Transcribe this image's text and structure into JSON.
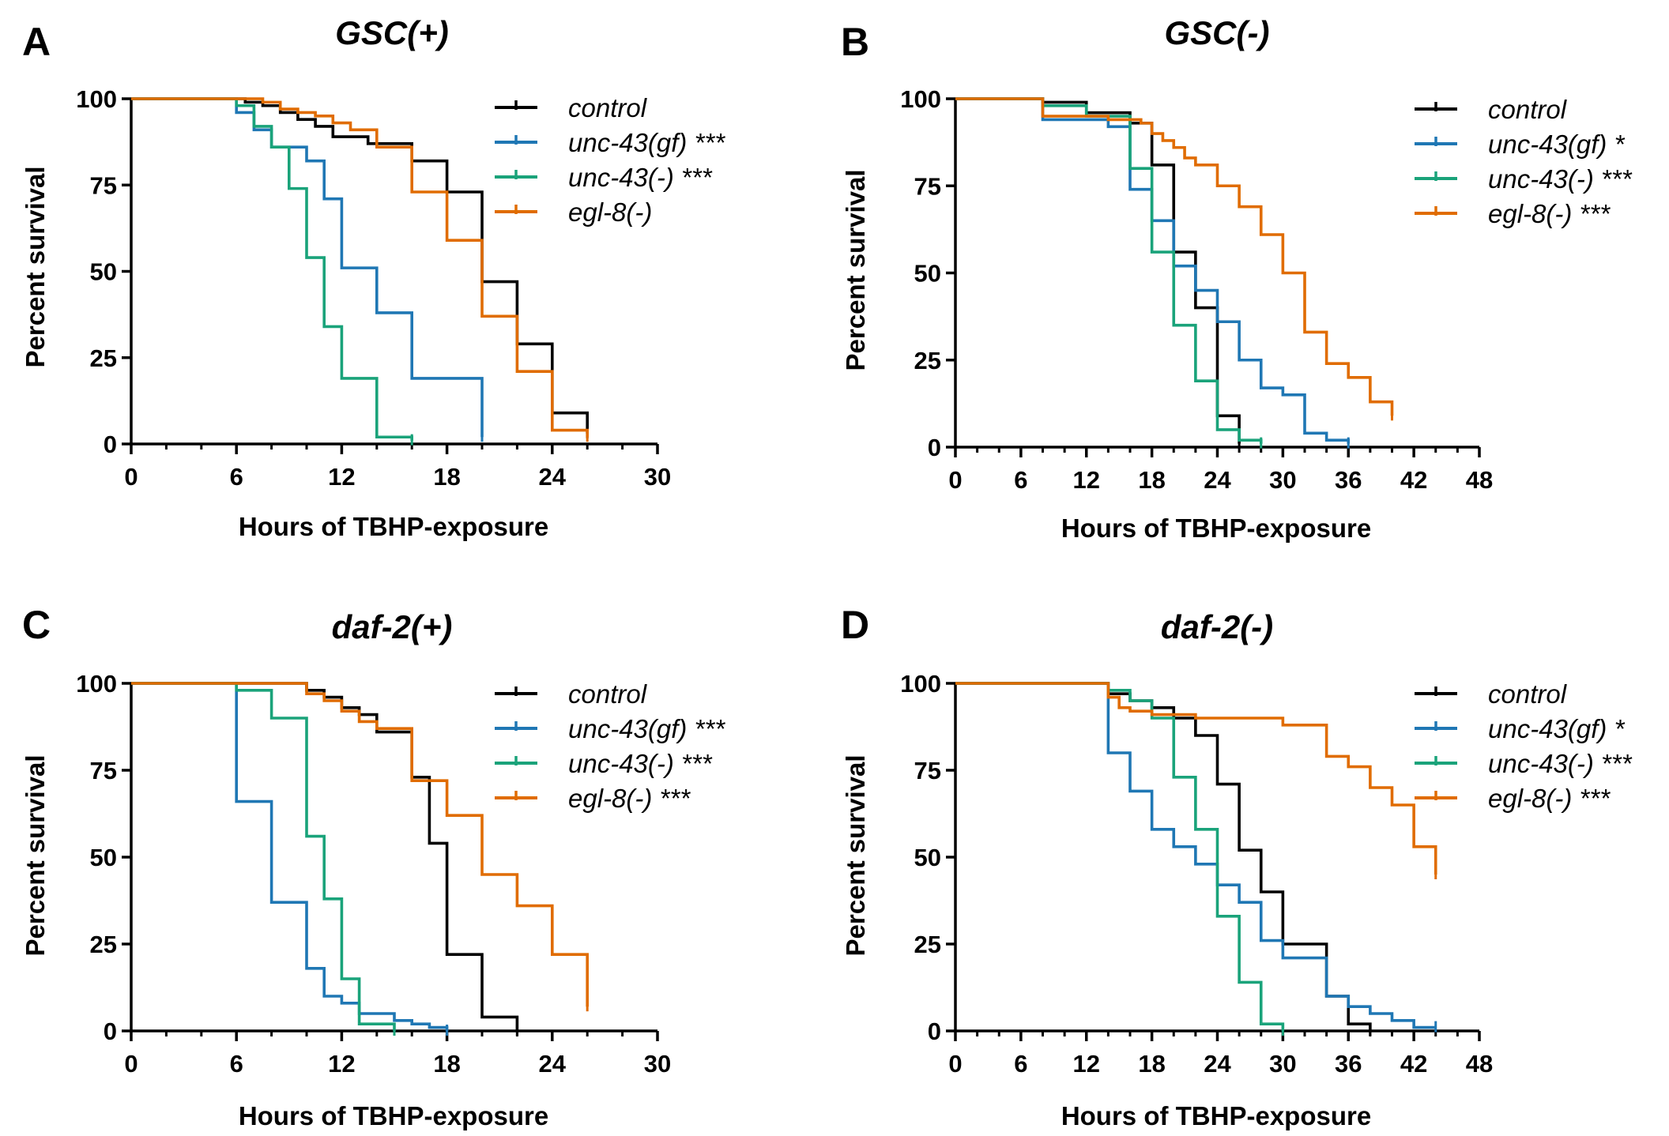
{
  "chart_data": [
    {
      "type": "line",
      "step": true,
      "panel": "A",
      "title": "GSC(+)",
      "xlabel": "Hours of TBHP-exposure",
      "ylabel": "Percent survival",
      "xlim": [
        0,
        30
      ],
      "ylim": [
        0,
        100
      ],
      "xticks": [
        0,
        6,
        12,
        18,
        24,
        30
      ],
      "yticks": [
        0,
        25,
        50,
        75,
        100
      ],
      "series": [
        {
          "name": "control",
          "label": "control",
          "color": "#000000",
          "x": [
            0,
            6.5,
            7.5,
            8.5,
            9.5,
            10.5,
            11.5,
            13.5,
            16,
            18,
            20,
            22,
            24,
            26
          ],
          "y": [
            100,
            99,
            98,
            96,
            94,
            92,
            89,
            87,
            82,
            73,
            47,
            29,
            9,
            3
          ]
        },
        {
          "name": "unc-43(gf)",
          "label": "unc-43(gf) ***",
          "color": "#1f77b4",
          "x": [
            0,
            6,
            7,
            8,
            10,
            11,
            12,
            14,
            16,
            20
          ],
          "y": [
            100,
            96,
            91,
            86,
            82,
            71,
            51,
            38,
            19,
            2
          ]
        },
        {
          "name": "unc-43(-)",
          "label": "unc-43(-) ***",
          "color": "#1aa37a",
          "x": [
            0,
            6,
            7,
            8,
            9,
            10,
            11,
            12,
            14,
            16
          ],
          "y": [
            100,
            98,
            92,
            86,
            74,
            54,
            34,
            19,
            2,
            1
          ]
        },
        {
          "name": "egl-8(-)",
          "label": "egl-8(-)",
          "color": "#e06c00",
          "x": [
            0,
            7.5,
            8.5,
            9.5,
            10.5,
            11.5,
            12.5,
            14,
            16,
            18,
            20,
            22,
            24,
            26
          ],
          "y": [
            100,
            99,
            97,
            96,
            95,
            93,
            91,
            86,
            73,
            59,
            37,
            21,
            4,
            2
          ]
        }
      ]
    },
    {
      "type": "line",
      "step": true,
      "panel": "B",
      "title": "GSC(-)",
      "xlabel": "Hours of TBHP-exposure",
      "ylabel": "Percent survival",
      "xlim": [
        0,
        48
      ],
      "ylim": [
        0,
        100
      ],
      "xticks": [
        0,
        6,
        12,
        18,
        24,
        30,
        36,
        42,
        48
      ],
      "yticks": [
        0,
        25,
        50,
        75,
        100
      ],
      "series": [
        {
          "name": "control",
          "label": "control",
          "color": "#000000",
          "x": [
            0,
            8,
            12,
            16,
            18,
            20,
            22,
            24,
            26
          ],
          "y": [
            100,
            99,
            96,
            93,
            81,
            56,
            40,
            9,
            1
          ]
        },
        {
          "name": "unc-43(gf)",
          "label": "unc-43(gf) *",
          "color": "#1f77b4",
          "x": [
            0,
            8,
            14,
            16,
            18,
            20,
            22,
            24,
            26,
            28,
            30,
            32,
            34,
            36
          ],
          "y": [
            100,
            94,
            92,
            74,
            65,
            52,
            45,
            36,
            25,
            17,
            15,
            4,
            2,
            1
          ]
        },
        {
          "name": "unc-43(-)",
          "label": "unc-43(-) ***",
          "color": "#1aa37a",
          "x": [
            0,
            8,
            12,
            16,
            18,
            20,
            22,
            24,
            26,
            28
          ],
          "y": [
            100,
            98,
            95,
            80,
            56,
            35,
            19,
            5,
            2,
            1
          ]
        },
        {
          "name": "egl-8(-)",
          "label": "egl-8(-) ***",
          "color": "#e06c00",
          "x": [
            0,
            8,
            14,
            17,
            18,
            19,
            20,
            21,
            22,
            24,
            26,
            28,
            30,
            32,
            34,
            36,
            38,
            40
          ],
          "y": [
            100,
            95,
            94,
            93,
            90,
            88,
            86,
            83,
            81,
            75,
            69,
            61,
            50,
            33,
            24,
            20,
            13,
            9
          ]
        }
      ]
    },
    {
      "type": "line",
      "step": true,
      "panel": "C",
      "title": "daf-2(+)",
      "xlabel": "Hours of TBHP-exposure",
      "ylabel": "Percent survival",
      "xlim": [
        0,
        30
      ],
      "ylim": [
        0,
        100
      ],
      "xticks": [
        0,
        6,
        12,
        18,
        24,
        30
      ],
      "yticks": [
        0,
        25,
        50,
        75,
        100
      ],
      "series": [
        {
          "name": "control",
          "label": "control",
          "color": "#000000",
          "x": [
            0,
            10,
            11,
            12,
            13,
            14,
            15,
            16,
            17,
            18,
            20,
            22
          ],
          "y": [
            100,
            98,
            96,
            93,
            91,
            86,
            86,
            73,
            54,
            22,
            4,
            0
          ]
        },
        {
          "name": "unc-43(gf)",
          "label": "unc-43(gf) ***",
          "color": "#1f77b4",
          "x": [
            0,
            6,
            8,
            10,
            11,
            12,
            13,
            15,
            16,
            17,
            18
          ],
          "y": [
            100,
            66,
            37,
            18,
            10,
            8,
            5,
            3,
            2,
            1,
            0
          ]
        },
        {
          "name": "unc-43(-)",
          "label": "unc-43(-) ***",
          "color": "#1aa37a",
          "x": [
            0,
            6,
            8,
            10,
            11,
            12,
            13,
            15
          ],
          "y": [
            100,
            98,
            90,
            56,
            38,
            15,
            2,
            0
          ]
        },
        {
          "name": "egl-8(-)",
          "label": "egl-8(-) ***",
          "color": "#e06c00",
          "x": [
            0,
            10,
            11,
            12,
            13,
            14,
            15,
            16,
            18,
            20,
            22,
            24,
            26
          ],
          "y": [
            100,
            97,
            95,
            92,
            89,
            87,
            87,
            72,
            62,
            45,
            36,
            22,
            7
          ]
        }
      ]
    },
    {
      "type": "line",
      "step": true,
      "panel": "D",
      "title": "daf-2(-)",
      "xlabel": "Hours of TBHP-exposure",
      "ylabel": "Percent survival",
      "xlim": [
        0,
        48
      ],
      "ylim": [
        0,
        100
      ],
      "xticks": [
        0,
        6,
        12,
        18,
        24,
        30,
        36,
        42,
        48
      ],
      "yticks": [
        0,
        25,
        50,
        75,
        100
      ],
      "series": [
        {
          "name": "control",
          "label": "control",
          "color": "#000000",
          "x": [
            0,
            14,
            16,
            18,
            20,
            22,
            24,
            26,
            28,
            30,
            34,
            36,
            38
          ],
          "y": [
            100,
            97,
            95,
            93,
            90,
            85,
            71,
            52,
            40,
            25,
            10,
            2,
            0
          ]
        },
        {
          "name": "unc-43(gf)",
          "label": "unc-43(gf) *",
          "color": "#1f77b4",
          "x": [
            0,
            14,
            16,
            18,
            20,
            22,
            24,
            26,
            28,
            30,
            34,
            36,
            38,
            40,
            42,
            44
          ],
          "y": [
            100,
            80,
            69,
            58,
            53,
            48,
            42,
            37,
            26,
            21,
            10,
            7,
            5,
            3,
            1,
            1
          ]
        },
        {
          "name": "unc-43(-)",
          "label": "unc-43(-) ***",
          "color": "#1aa37a",
          "x": [
            0,
            14,
            16,
            18,
            20,
            22,
            24,
            26,
            28,
            30
          ],
          "y": [
            100,
            98,
            95,
            90,
            73,
            58,
            33,
            14,
            2,
            0
          ]
        },
        {
          "name": "egl-8(-)",
          "label": "egl-8(-) ***",
          "color": "#e06c00",
          "x": [
            0,
            14,
            15,
            16,
            18,
            20,
            22,
            30,
            34,
            36,
            38,
            40,
            42,
            44
          ],
          "y": [
            100,
            96,
            93,
            92,
            91,
            91,
            90,
            88,
            79,
            76,
            70,
            65,
            53,
            45
          ]
        }
      ]
    }
  ]
}
